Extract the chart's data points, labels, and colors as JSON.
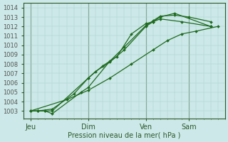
{
  "xlabel": "Pression niveau de la mer( hPa )",
  "bg_color": "#cce8e8",
  "grid_color": "#aacccc",
  "line_color": "#1f6b1f",
  "dark_line_color": "#2d5a2d",
  "ylim": [
    1002.2,
    1014.5
  ],
  "yticks": [
    1003,
    1004,
    1005,
    1006,
    1007,
    1008,
    1009,
    1010,
    1011,
    1012,
    1013,
    1014
  ],
  "day_labels": [
    "Jeu",
    "Dim",
    "Ven",
    "Sam"
  ],
  "day_positions": [
    0,
    8,
    16,
    22
  ],
  "xlim": [
    -1,
    27
  ],
  "minor_x_step": 1,
  "series": [
    {
      "x": [
        0,
        1,
        2,
        3,
        8,
        9,
        11,
        13,
        16,
        17,
        18,
        20,
        25
      ],
      "y": [
        1003.0,
        1003.0,
        1003.0,
        1003.0,
        1006.5,
        1007.2,
        1008.2,
        1009.5,
        1012.0,
        1012.5,
        1013.0,
        1013.4,
        1012.0
      ]
    },
    {
      "x": [
        0,
        1,
        2,
        3,
        7,
        8,
        11,
        13,
        16,
        17,
        18,
        20,
        22,
        25
      ],
      "y": [
        1003.0,
        1003.0,
        1003.0,
        1002.7,
        1005.0,
        1005.5,
        1008.3,
        1009.8,
        1012.1,
        1012.6,
        1013.1,
        1013.2,
        1013.0,
        1012.5
      ]
    },
    {
      "x": [
        0,
        1,
        3,
        6,
        8,
        10,
        12,
        14,
        16,
        17,
        18,
        21,
        25
      ],
      "y": [
        1003.0,
        1003.0,
        1003.2,
        1004.8,
        1006.5,
        1007.8,
        1008.8,
        1011.2,
        1012.3,
        1012.5,
        1012.8,
        1012.5,
        1012.0
      ]
    },
    {
      "x": [
        0,
        5,
        8,
        11,
        14,
        17,
        19,
        21,
        23,
        26
      ],
      "y": [
        1003.0,
        1004.2,
        1005.2,
        1006.5,
        1008.0,
        1009.5,
        1010.5,
        1011.2,
        1011.5,
        1012.0
      ]
    }
  ],
  "marker": "D",
  "markersize": 2.0,
  "linewidth": 0.9
}
